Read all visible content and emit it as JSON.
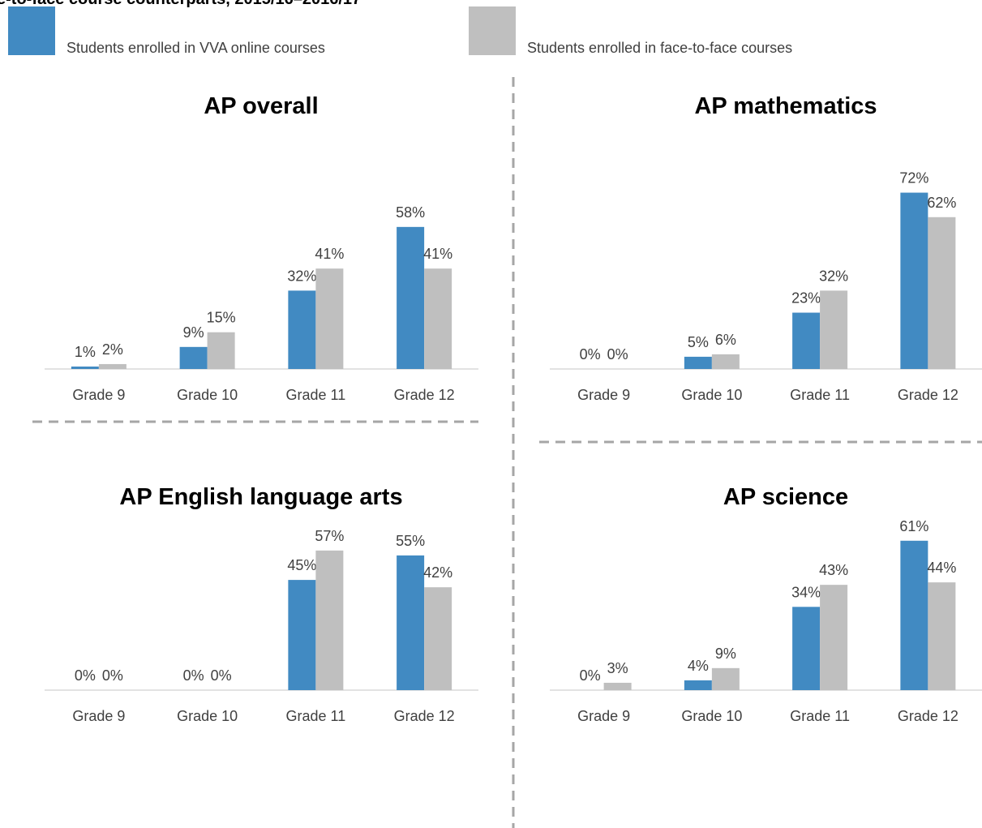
{
  "chart_data": {
    "type": "bar",
    "title": "e-to-face course counterparts, 2015/16–2016/17",
    "categories": [
      "Grade 9",
      "Grade 10",
      "Grade 11",
      "Grade 12"
    ],
    "series": [
      {
        "name": "Students enrolled in VVA online courses",
        "color": "#418ac2"
      },
      {
        "name": "Students enrolled in face-to-face courses",
        "color": "#bfbfbf"
      }
    ],
    "panels": [
      {
        "title": "AP overall",
        "series": [
          {
            "values": [
              1,
              9,
              32,
              58
            ],
            "value_labels": [
              "1%",
              "9%",
              "32%",
              "58%"
            ]
          },
          {
            "values": [
              2,
              15,
              41,
              41
            ],
            "value_labels": [
              "2%",
              "15%",
              "41%",
              "41%"
            ]
          }
        ]
      },
      {
        "title": "AP mathematics",
        "series": [
          {
            "values": [
              0,
              5,
              23,
              72
            ],
            "value_labels": [
              "0%",
              "5%",
              "23%",
              "72%"
            ]
          },
          {
            "values": [
              0,
              6,
              32,
              62
            ],
            "value_labels": [
              "0%",
              "6%",
              "32%",
              "62%"
            ]
          }
        ]
      },
      {
        "title": "AP English language arts",
        "series": [
          {
            "values": [
              0,
              0,
              45,
              55
            ],
            "value_labels": [
              "0%",
              "0%",
              "45%",
              "55%"
            ]
          },
          {
            "values": [
              0,
              0,
              57,
              42
            ],
            "value_labels": [
              "0%",
              "0%",
              "57%",
              "42%"
            ]
          }
        ]
      },
      {
        "title": "AP science",
        "series": [
          {
            "values": [
              0,
              4,
              34,
              61
            ],
            "value_labels": [
              "0%",
              "4%",
              "34%",
              "61%"
            ]
          },
          {
            "values": [
              3,
              9,
              43,
              44
            ],
            "value_labels": [
              "3%",
              "9%",
              "43%",
              "44%"
            ]
          }
        ]
      }
    ]
  }
}
